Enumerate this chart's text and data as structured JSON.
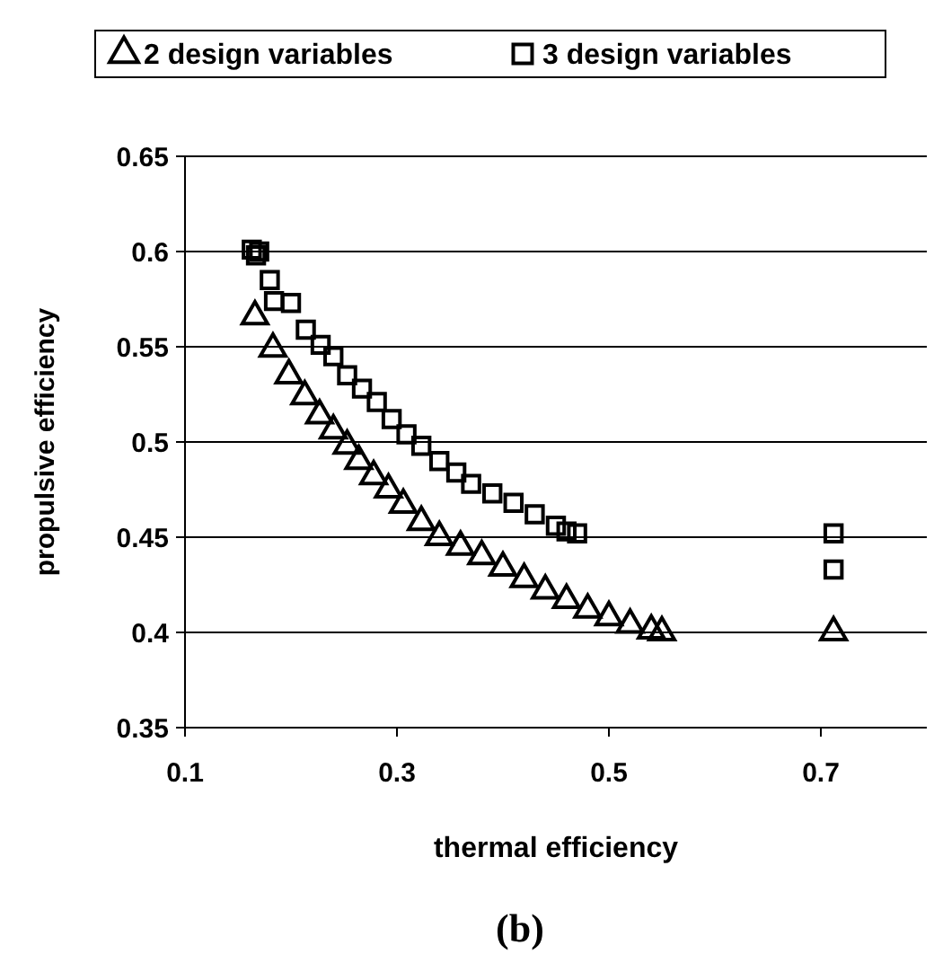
{
  "chart_data": {
    "type": "scatter",
    "xlabel": "thermal efficiency",
    "ylabel": "propulsive efficiency",
    "annotations": [
      "(b)"
    ],
    "xlim": [
      0.1,
      0.8
    ],
    "xticks": [
      0.1,
      0.3,
      0.5,
      0.7
    ],
    "ylim": [
      0.35,
      0.65
    ],
    "yticks": [
      0.35,
      0.4,
      0.45,
      0.5,
      0.55,
      0.6,
      0.65
    ],
    "grid": "y",
    "legend": "top",
    "series": [
      {
        "name": "2 design variables",
        "color": "#000000",
        "marker": "triangle",
        "x": [
          0.166,
          0.183,
          0.198,
          0.213,
          0.227,
          0.24,
          0.253,
          0.264,
          0.278,
          0.292,
          0.306,
          0.323,
          0.34,
          0.36,
          0.38,
          0.4,
          0.42,
          0.44,
          0.46,
          0.48,
          0.5,
          0.52,
          0.54,
          0.55,
          0.712
        ],
        "values": [
          0.566,
          0.549,
          0.535,
          0.524,
          0.514,
          0.506,
          0.498,
          0.49,
          0.482,
          0.475,
          0.467,
          0.458,
          0.45,
          0.445,
          0.44,
          0.434,
          0.428,
          0.422,
          0.417,
          0.412,
          0.408,
          0.404,
          0.401,
          0.4,
          0.4
        ]
      },
      {
        "name": "3 design variables",
        "color": "#000000",
        "marker": "square",
        "x": [
          0.163,
          0.167,
          0.17,
          0.18,
          0.184,
          0.2,
          0.214,
          0.228,
          0.24,
          0.253,
          0.267,
          0.281,
          0.295,
          0.309,
          0.323,
          0.34,
          0.356,
          0.37,
          0.39,
          0.41,
          0.43,
          0.45,
          0.46,
          0.47,
          0.712,
          0.712
        ],
        "values": [
          0.601,
          0.598,
          0.6,
          0.585,
          0.574,
          0.573,
          0.559,
          0.551,
          0.545,
          0.535,
          0.528,
          0.521,
          0.512,
          0.504,
          0.498,
          0.49,
          0.484,
          0.478,
          0.473,
          0.468,
          0.462,
          0.456,
          0.453,
          0.452,
          0.452,
          0.433
        ]
      }
    ]
  }
}
